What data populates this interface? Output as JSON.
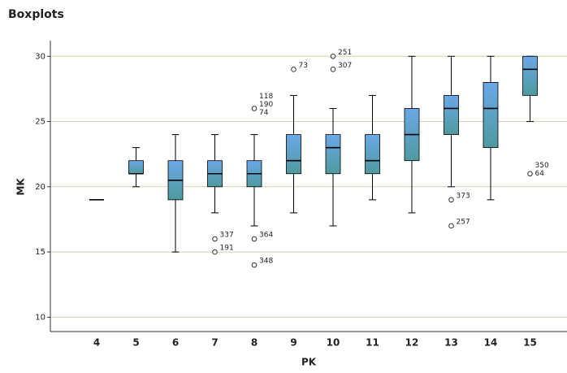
{
  "chart_data": {
    "type": "boxplot",
    "title": "Boxplots",
    "x_label": "PK",
    "y_label": "MK",
    "categories": [
      "4",
      "5",
      "6",
      "7",
      "8",
      "9",
      "10",
      "11",
      "12",
      "13",
      "14",
      "15"
    ],
    "boxes": [
      {
        "min": 19,
        "q1": 19,
        "median": 19,
        "q3": 19,
        "max": 19,
        "outliers": []
      },
      {
        "min": 20,
        "q1": 21,
        "median": 21,
        "q3": 22,
        "max": 23,
        "outliers": []
      },
      {
        "min": 15,
        "q1": 19,
        "median": 20.5,
        "q3": 22,
        "max": 24,
        "outliers": []
      },
      {
        "min": 18,
        "q1": 20,
        "median": 21,
        "q3": 22,
        "max": 24,
        "outliers": [
          {
            "value": 16,
            "label": "337"
          },
          {
            "value": 15,
            "label": "191"
          }
        ]
      },
      {
        "min": 17,
        "q1": 20,
        "median": 21,
        "q3": 22,
        "max": 24,
        "outliers": [
          {
            "value": 26,
            "label": "118"
          },
          {
            "value": 26,
            "label": "190"
          },
          {
            "value": 26,
            "label": "74"
          },
          {
            "value": 16,
            "label": "364"
          },
          {
            "value": 14,
            "label": "348"
          }
        ]
      },
      {
        "min": 18,
        "q1": 21,
        "median": 22,
        "q3": 24,
        "max": 27,
        "outliers": [
          {
            "value": 29,
            "label": "73"
          }
        ]
      },
      {
        "min": 17,
        "q1": 21,
        "median": 23,
        "q3": 24,
        "max": 26,
        "outliers": [
          {
            "value": 30,
            "label": "251"
          },
          {
            "value": 29,
            "label": "307"
          }
        ]
      },
      {
        "min": 19,
        "q1": 21,
        "median": 22,
        "q3": 24,
        "max": 27,
        "outliers": []
      },
      {
        "min": 18,
        "q1": 22,
        "median": 24,
        "q3": 26,
        "max": 30,
        "outliers": []
      },
      {
        "min": 20,
        "q1": 24,
        "median": 26,
        "q3": 27,
        "max": 30,
        "outliers": [
          {
            "value": 19,
            "label": "373"
          },
          {
            "value": 17,
            "label": "257"
          }
        ]
      },
      {
        "min": 19,
        "q1": 23,
        "median": 26,
        "q3": 28,
        "max": 30,
        "outliers": []
      },
      {
        "min": 25,
        "q1": 27,
        "median": 29,
        "q3": 30,
        "max": 30,
        "outliers": [
          {
            "value": 21,
            "label": "350"
          },
          {
            "value": 21,
            "label": "64"
          }
        ]
      }
    ],
    "ylim": [
      8.9,
      31.2
    ],
    "yticks": [
      10,
      15,
      20,
      25,
      30
    ],
    "grid": true,
    "color": "#5b9bd5"
  }
}
